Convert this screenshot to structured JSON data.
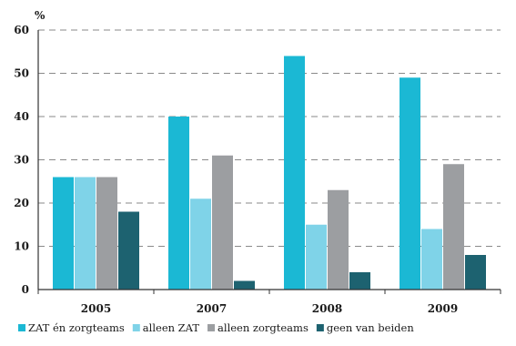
{
  "chart_data": {
    "type": "bar",
    "unit_label": "%",
    "categories": [
      "2005",
      "2007",
      "2008",
      "2009"
    ],
    "series": [
      {
        "name": "ZAT én zorgteams",
        "color": "#1bb8d4",
        "values": [
          26,
          40,
          54,
          49
        ]
      },
      {
        "name": "alleen ZAT",
        "color": "#7fd3e8",
        "values": [
          26,
          21,
          15,
          14
        ]
      },
      {
        "name": "alleen zorgteams",
        "color": "#9c9ea1",
        "values": [
          26,
          31,
          23,
          29
        ]
      },
      {
        "name": "geen van beiden",
        "color": "#1d6270",
        "values": [
          18,
          2,
          4,
          8
        ]
      }
    ],
    "ylim": [
      0,
      60
    ],
    "yticks": [
      "0",
      "10",
      "20",
      "30",
      "40",
      "50",
      "60"
    ],
    "grid": true,
    "legend_position": "bottom"
  }
}
